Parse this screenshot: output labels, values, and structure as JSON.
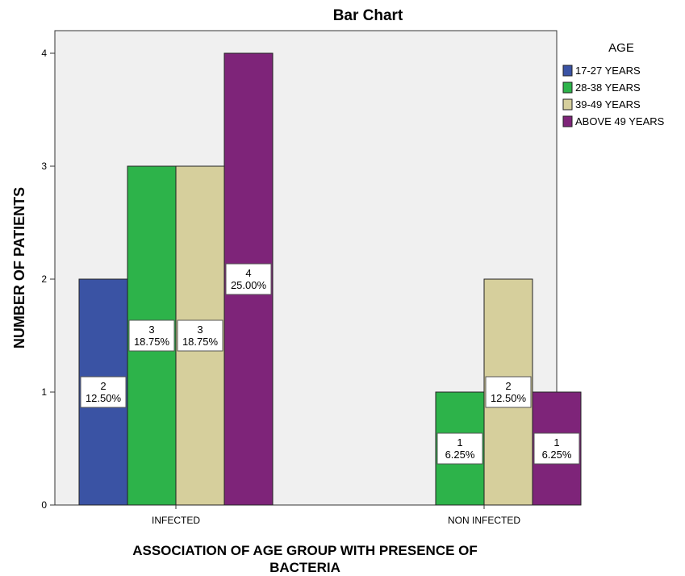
{
  "chart_data": {
    "type": "bar",
    "title": "Bar Chart",
    "xlabel": [
      "ASSOCIATION OF AGE GROUP WITH PRESENCE OF",
      "BACTERIA"
    ],
    "ylabel": "NUMBER OF PATIENTS",
    "categories": [
      "INFECTED",
      "NON INFECTED"
    ],
    "ylim": [
      0,
      4.2
    ],
    "yticks": [
      "0",
      "1",
      "2",
      "3",
      "4"
    ],
    "grid": false,
    "legend_title": "AGE",
    "legend_position": "right",
    "series": [
      {
        "name": "17-27 YEARS",
        "color": "#3A53A4",
        "values": [
          2,
          0
        ],
        "labels": [
          [
            "2",
            "12.50%"
          ],
          null
        ]
      },
      {
        "name": "28-38 YEARS",
        "color": "#2DB34A",
        "values": [
          3,
          1
        ],
        "labels": [
          [
            "3",
            "18.75%"
          ],
          [
            "1",
            "6.25%"
          ]
        ]
      },
      {
        "name": "39-49 YEARS",
        "color": "#D6CF9C",
        "values": [
          3,
          2
        ],
        "labels": [
          [
            "3",
            "18.75%"
          ],
          [
            "2",
            "12.50%"
          ]
        ]
      },
      {
        "name": "ABOVE 49 YEARS",
        "color": "#7E2479",
        "values": [
          4,
          1
        ],
        "labels": [
          [
            "4",
            "25.00%"
          ],
          [
            "1",
            "6.25%"
          ]
        ]
      }
    ]
  }
}
